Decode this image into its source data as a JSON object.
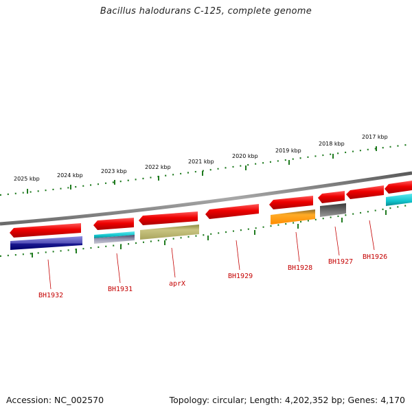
{
  "title": "Bacillus halodurans C-125, complete genome",
  "footer": {
    "accession": "Accession: NC_002570",
    "summary": "Topology: circular; Length: 4,202,352 bp; Genes: 4,170"
  },
  "colors": {
    "backbone": "#7d7d7d",
    "gene": "#f20000",
    "tick": "#1e7a1e",
    "label": "#c40000"
  },
  "kbp_labels": [
    "2025 kbp",
    "2024 kbp",
    "2023 kbp",
    "2022 kbp",
    "2021 kbp",
    "2020 kbp",
    "2019 kbp",
    "2018 kbp",
    "2017 kbp"
  ],
  "genes": [
    {
      "label": "BH1932",
      "feature": "blue"
    },
    {
      "label": "BH1931",
      "feature": "cyan-gray"
    },
    {
      "label": "aprX",
      "feature": "olive"
    },
    {
      "label": "BH1929",
      "feature": ""
    },
    {
      "label": "BH1928",
      "feature": "orange"
    },
    {
      "label": "BH1927",
      "feature": "gray"
    },
    {
      "label": "BH1926",
      "feature": "cyan"
    }
  ]
}
